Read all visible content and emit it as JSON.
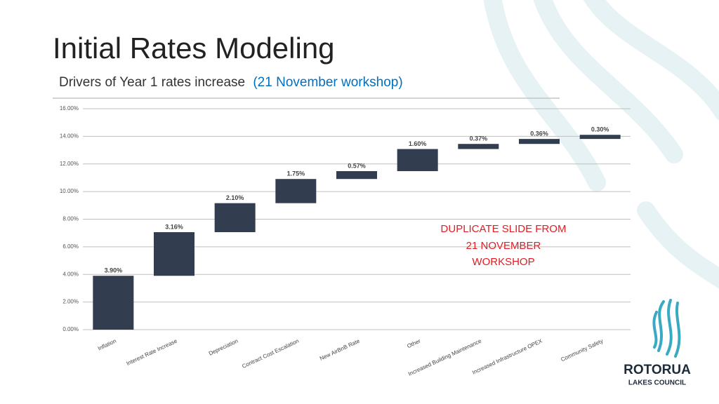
{
  "chart_data": {
    "type": "waterfall",
    "title": "Initial Rates Modeling",
    "subtitle": "Drivers of Year 1 rates increase",
    "subtitle_highlight": "(21 November workshop)",
    "categories": [
      "Inflation",
      "Interest Rate Increase",
      "Depreciation",
      "Contract Cost Escalation",
      "New AirBnB Rate",
      "Other",
      "Increased Building Maintenance",
      "Increased Infrastructure OPEX",
      "Community Safety"
    ],
    "values": [
      3.9,
      3.16,
      2.1,
      1.75,
      0.57,
      1.6,
      0.37,
      0.36,
      0.3
    ],
    "value_labels": [
      "3.90%",
      "3.16%",
      "2.10%",
      "1.75%",
      "0.57%",
      "1.60%",
      "0.37%",
      "0.36%",
      "0.30%"
    ],
    "color": "#323e4f",
    "ylim": [
      0,
      16
    ],
    "yticks": [
      {
        "value": 0,
        "label": "0.00%"
      },
      {
        "value": 2,
        "label": "2.00%"
      },
      {
        "value": 4,
        "label": "4.00%"
      },
      {
        "value": 6,
        "label": "6.00%"
      },
      {
        "value": 8,
        "label": "8.00%"
      },
      {
        "value": 10,
        "label": "10.00%"
      },
      {
        "value": 12,
        "label": "12.00%"
      },
      {
        "value": 14,
        "label": "14.00%"
      },
      {
        "value": 16,
        "label": "16.00%"
      }
    ],
    "grid": true,
    "annotation": [
      "DUPLICATE SLIDE FROM",
      "21 NOVEMBER",
      "WORKSHOP"
    ]
  },
  "logo": {
    "name": "ROTORUA",
    "subname": "LAKES COUNCIL"
  }
}
